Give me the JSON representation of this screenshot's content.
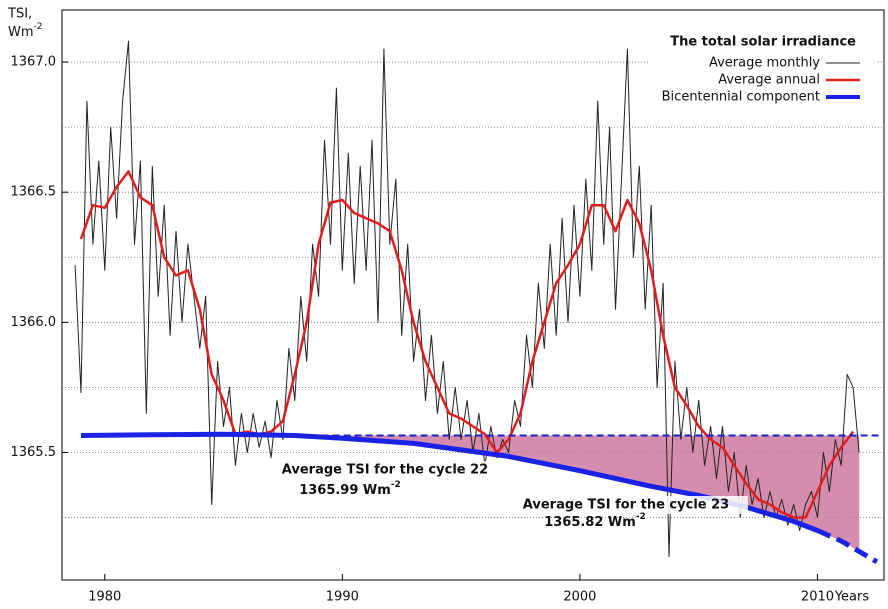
{
  "chart_data": {
    "type": "line",
    "y_label": "TSI,",
    "y_unit": "Wm",
    "y_unit_exp": "-2",
    "x_label": "Years",
    "legend_title": "The total solar irradiance",
    "legend": "upper right",
    "xlim": [
      1978.2,
      2012.8
    ],
    "ylim": [
      1365.01,
      1367.2
    ],
    "xticks": [
      1980,
      1990,
      2000,
      2010
    ],
    "yticks": [
      {
        "value": 1365.5,
        "label": "1365.5"
      },
      {
        "value": 1366,
        "label": "1366.0"
      },
      {
        "value": 1366.5,
        "label": "1366.5"
      },
      {
        "value": 1367,
        "label": "1367.0"
      }
    ],
    "minor_yticks": [
      1365.25,
      1365.75,
      1366.25,
      1366.75
    ],
    "grid": true,
    "series": [
      {
        "name": "Average monthly",
        "color": "#222222",
        "width": 1,
        "x": [
          1978.75,
          1979.0,
          1979.25,
          1979.5,
          1979.75,
          1980.0,
          1980.25,
          1980.5,
          1980.75,
          1981.0,
          1981.25,
          1981.5,
          1981.75,
          1982.0,
          1982.25,
          1982.5,
          1982.75,
          1983.0,
          1983.25,
          1983.5,
          1983.75,
          1984.0,
          1984.25,
          1984.5,
          1984.75,
          1985.0,
          1985.25,
          1985.5,
          1985.75,
          1986.0,
          1986.25,
          1986.5,
          1986.75,
          1987.0,
          1987.25,
          1987.5,
          1987.75,
          1988.0,
          1988.25,
          1988.5,
          1988.75,
          1989.0,
          1989.25,
          1989.5,
          1989.75,
          1990.0,
          1990.25,
          1990.5,
          1990.75,
          1991.0,
          1991.25,
          1991.5,
          1991.75,
          1992.0,
          1992.25,
          1992.5,
          1992.75,
          1993.0,
          1993.25,
          1993.5,
          1993.75,
          1994.0,
          1994.25,
          1994.5,
          1994.75,
          1995.0,
          1995.25,
          1995.5,
          1995.75,
          1996.0,
          1996.25,
          1996.5,
          1996.75,
          1997.0,
          1997.25,
          1997.5,
          1997.75,
          1998.0,
          1998.25,
          1998.5,
          1998.75,
          1999.0,
          1999.25,
          1999.5,
          1999.75,
          2000.0,
          2000.25,
          2000.5,
          2000.75,
          2001.0,
          2001.25,
          2001.5,
          2001.75,
          2002.0,
          2002.25,
          2002.5,
          2002.75,
          2003.0,
          2003.25,
          2003.5,
          2003.75,
          2004.0,
          2004.25,
          2004.5,
          2004.75,
          2005.0,
          2005.25,
          2005.5,
          2005.75,
          2006.0,
          2006.25,
          2006.5,
          2006.75,
          2007.0,
          2007.25,
          2007.5,
          2007.75,
          2008.0,
          2008.25,
          2008.5,
          2008.75,
          2009.0,
          2009.25,
          2009.5,
          2009.75,
          2010.0,
          2010.25,
          2010.5,
          2010.75,
          2011.0,
          2011.25,
          2011.5,
          2011.75
        ],
        "values": [
          1366.22,
          1365.73,
          1366.85,
          1366.3,
          1366.62,
          1366.2,
          1366.75,
          1366.4,
          1366.85,
          1367.08,
          1366.3,
          1366.62,
          1365.65,
          1366.6,
          1366.1,
          1366.45,
          1365.95,
          1366.35,
          1366.0,
          1366.3,
          1366.1,
          1365.9,
          1366.1,
          1365.3,
          1365.85,
          1365.6,
          1365.75,
          1365.45,
          1365.65,
          1365.5,
          1365.65,
          1365.52,
          1365.62,
          1365.48,
          1365.7,
          1365.55,
          1365.9,
          1365.7,
          1366.1,
          1365.85,
          1366.3,
          1366.1,
          1366.7,
          1366.3,
          1366.9,
          1366.2,
          1366.65,
          1366.15,
          1366.6,
          1366.2,
          1366.7,
          1366.0,
          1367.05,
          1366.3,
          1366.55,
          1365.95,
          1366.3,
          1365.85,
          1366.05,
          1365.7,
          1365.95,
          1365.65,
          1365.85,
          1365.55,
          1365.75,
          1365.55,
          1365.7,
          1365.5,
          1365.65,
          1365.45,
          1365.6,
          1365.48,
          1365.55,
          1365.5,
          1365.7,
          1365.6,
          1365.95,
          1365.75,
          1366.15,
          1365.9,
          1366.3,
          1365.95,
          1366.4,
          1366.0,
          1366.45,
          1366.1,
          1366.55,
          1366.2,
          1366.85,
          1366.3,
          1366.75,
          1366.05,
          1366.55,
          1367.05,
          1366.25,
          1366.6,
          1366.05,
          1366.45,
          1365.75,
          1366.15,
          1365.1,
          1365.85,
          1365.55,
          1365.75,
          1365.5,
          1365.7,
          1365.45,
          1365.6,
          1365.4,
          1365.6,
          1365.35,
          1365.5,
          1365.25,
          1365.45,
          1365.3,
          1365.4,
          1365.25,
          1365.35,
          1365.25,
          1365.32,
          1365.22,
          1365.3,
          1365.2,
          1365.3,
          1365.35,
          1365.25,
          1365.5,
          1365.35,
          1365.55,
          1365.45,
          1365.8,
          1365.75,
          1365.5
        ]
      },
      {
        "name": "Average annual",
        "color": "#e01e1e",
        "width": 2.5,
        "x": [
          1979.0,
          1979.5,
          1980.0,
          1980.5,
          1981.0,
          1981.5,
          1982.0,
          1982.5,
          1983.0,
          1983.5,
          1984.0,
          1984.5,
          1985.0,
          1985.5,
          1986.0,
          1986.5,
          1987.0,
          1987.5,
          1988.0,
          1988.5,
          1989.0,
          1989.5,
          1990.0,
          1990.5,
          1991.0,
          1991.5,
          1992.0,
          1992.5,
          1993.0,
          1993.5,
          1994.0,
          1994.5,
          1995.0,
          1995.5,
          1996.0,
          1996.5,
          1997.0,
          1997.5,
          1998.0,
          1998.5,
          1999.0,
          1999.5,
          2000.0,
          2000.5,
          2001.0,
          2001.5,
          2002.0,
          2002.5,
          2003.0,
          2003.5,
          2004.0,
          2004.5,
          2005.0,
          2005.5,
          2006.0,
          2006.5,
          2007.0,
          2007.5,
          2008.0,
          2008.5,
          2009.0,
          2009.5,
          2010.0,
          2010.5,
          2011.0,
          2011.5
        ],
        "values": [
          1366.32,
          1366.45,
          1366.44,
          1366.52,
          1366.58,
          1366.48,
          1366.45,
          1366.25,
          1366.18,
          1366.2,
          1366.05,
          1365.8,
          1365.7,
          1365.57,
          1365.58,
          1365.57,
          1365.58,
          1365.62,
          1365.8,
          1366.0,
          1366.3,
          1366.46,
          1366.47,
          1366.42,
          1366.4,
          1366.38,
          1366.35,
          1366.2,
          1366.0,
          1365.85,
          1365.75,
          1365.65,
          1365.63,
          1365.6,
          1365.57,
          1365.5,
          1365.55,
          1365.65,
          1365.85,
          1366.0,
          1366.15,
          1366.22,
          1366.3,
          1366.45,
          1366.45,
          1366.35,
          1366.47,
          1366.38,
          1366.2,
          1365.95,
          1365.75,
          1365.68,
          1365.6,
          1365.55,
          1365.52,
          1365.45,
          1365.38,
          1365.32,
          1365.3,
          1365.27,
          1365.25,
          1365.25,
          1365.35,
          1365.45,
          1365.52,
          1365.58
        ]
      },
      {
        "name": "Bicentennial component",
        "color": "#1a22e6",
        "width": 5,
        "dash_from": 2010,
        "x": [
          1979,
          1982,
          1985,
          1988,
          1990,
          1993,
          1995,
          1997,
          2000,
          2003,
          2005,
          2007,
          2009,
          2010,
          2011,
          2012.5
        ],
        "values": [
          1365.565,
          1365.568,
          1365.57,
          1365.565,
          1365.555,
          1365.535,
          1365.51,
          1365.485,
          1365.43,
          1365.37,
          1365.335,
          1365.29,
          1365.235,
          1365.2,
          1365.16,
          1365.08
        ]
      }
    ],
    "reference_line": {
      "value": 1365.565,
      "x": [
        1988.2,
        2012.7
      ],
      "color": "#1a22c0"
    },
    "shading": {
      "x": [
        1988.2,
        2011.76
      ],
      "color": "#cc6f99"
    },
    "annotations": [
      {
        "text": "Average TSI for the cycle 22",
        "value": "1365.99 Wm",
        "exp": "-2"
      },
      {
        "text": "Average TSI for the cycle 23",
        "value": "1365.82 Wm",
        "exp": "-2"
      }
    ]
  }
}
